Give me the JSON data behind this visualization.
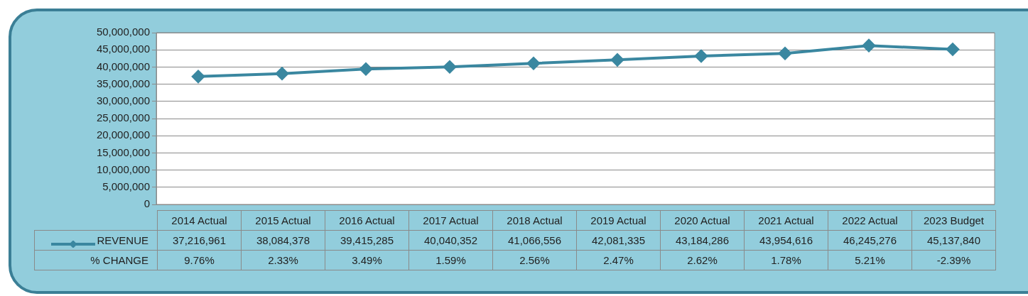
{
  "chart_data": {
    "type": "line",
    "categories": [
      "2014 Actual",
      "2015 Actual",
      "2016 Actual",
      "2017 Actual",
      "2018 Actual",
      "2019 Actual",
      "2020 Actual",
      "2021 Actual",
      "2022 Actual",
      "2023 Budget"
    ],
    "series": [
      {
        "name": "REVENUE",
        "color": "#3a87a0",
        "values": [
          37216961,
          38084378,
          39415285,
          40040352,
          41066556,
          42081335,
          43184286,
          43954616,
          46245276,
          45137840
        ],
        "value_labels": [
          "37,216,961",
          "38,084,378",
          "39,415,285",
          "40,040,352",
          "41,066,556",
          "42,081,335",
          "43,184,286",
          "43,954,616",
          "46,245,276",
          "45,137,840"
        ]
      }
    ],
    "ylim": [
      0,
      50000000
    ],
    "yticks": [
      0,
      {
        "value": 5000000,
        "label": "5,000,000"
      },
      {
        "value": 10000000,
        "label": "10,000,000"
      },
      {
        "value": 15000000,
        "label": "15,000,000"
      },
      {
        "value": 20000000,
        "label": "20,000,000"
      },
      {
        "value": 25000000,
        "label": "25,000,000"
      },
      {
        "value": 30000000,
        "label": "30,000,000"
      },
      {
        "value": 35000000,
        "label": "35,000,000"
      },
      {
        "value": 40000000,
        "label": "40,000,000"
      },
      {
        "value": 45000000,
        "label": "45,000,000"
      },
      {
        "value": 50000000,
        "label": "50,000,000"
      }
    ],
    "grid": "y",
    "marker": "diamond",
    "legend": "bottom",
    "annotations": [
      "% CHANGE",
      "9.76%",
      "2.33%",
      "3.49%",
      "1.59%",
      "2.56%",
      "2.47%",
      "2.62%",
      "1.78%",
      "5.21%",
      "-2.39%"
    ]
  }
}
